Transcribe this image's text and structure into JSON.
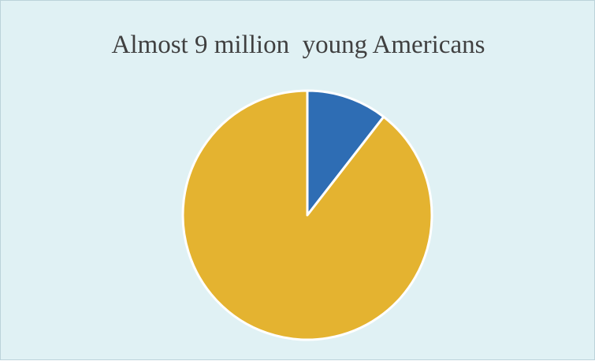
{
  "colors": {
    "background": "#e0f1f4",
    "border": "#bcd3da",
    "slice_edge": "#ffffff"
  },
  "chart_data": {
    "type": "pie",
    "title": "Almost 9 million  young Americans",
    "legend": "none",
    "data_labels": "none",
    "slices": [
      {
        "value": 10.5,
        "color": "#2e6db4"
      },
      {
        "value": 89.5,
        "color": "#e4b330"
      }
    ]
  }
}
